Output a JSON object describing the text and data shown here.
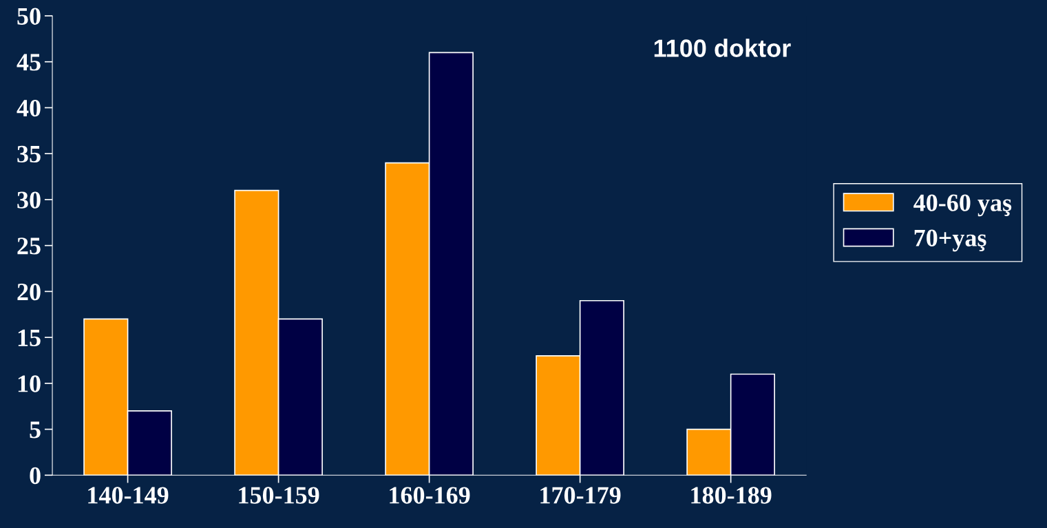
{
  "chart_data": {
    "type": "bar",
    "annotations": [
      "1100 doktor"
    ],
    "categories": [
      "140-149",
      "150-159",
      "160-169",
      "170-179",
      "180-189"
    ],
    "series": [
      {
        "name": "40-60 yaş",
        "color": "#ff9900",
        "values": [
          17,
          31,
          34,
          13,
          5
        ]
      },
      {
        "name": "70+yaş",
        "color": "#000044",
        "values": [
          7,
          17,
          46,
          19,
          11
        ]
      }
    ],
    "ylim": [
      0,
      50
    ],
    "yticks": [
      0,
      5,
      10,
      15,
      20,
      25,
      30,
      35,
      40,
      45,
      50
    ],
    "grid": false,
    "legend": "right"
  }
}
